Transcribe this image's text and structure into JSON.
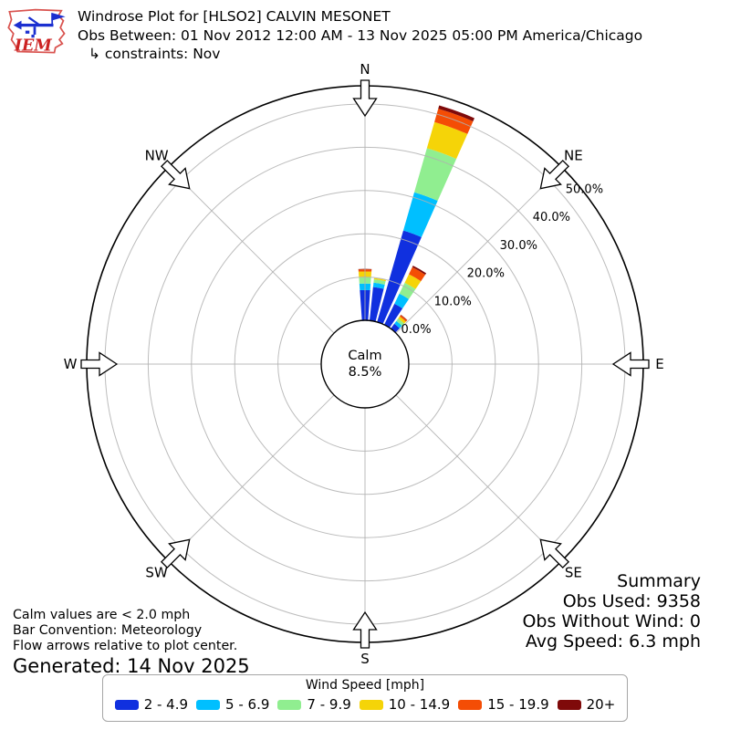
{
  "header": {
    "logo_text": "IEM",
    "title": "Windrose Plot for [HLSO2] CALVIN MESONET",
    "obs_between": "Obs Between: 01 Nov 2012 12:00 AM - 13 Nov 2025 05:00 PM America/Chicago",
    "constraints": "↳ constraints: Nov"
  },
  "chart_data": {
    "type": "windrose",
    "units": "mph",
    "center_label": [
      "Calm",
      "8.5%"
    ],
    "calm_pct": 8.5,
    "radial_ticks_pct": [
      0,
      10,
      20,
      30,
      40,
      50
    ],
    "radial_tick_labels": [
      "0.0%",
      "10.0%",
      "20.0%",
      "30.0%",
      "40.0%",
      "50.0%"
    ],
    "rmax_pct": 54.2,
    "grid_color": "#b0b0b0",
    "petal_width_deg": 8,
    "compass_points": [
      {
        "label": "N",
        "angle": 0
      },
      {
        "label": "NE",
        "angle": 45
      },
      {
        "label": "E",
        "angle": 90
      },
      {
        "label": "SE",
        "angle": 135
      },
      {
        "label": "S",
        "angle": 180
      },
      {
        "label": "SW",
        "angle": 225
      },
      {
        "label": "W",
        "angle": 270
      },
      {
        "label": "NW",
        "angle": 315
      }
    ],
    "speed_bins": [
      {
        "label": "2 - 4.9",
        "color": "#1030df"
      },
      {
        "label": "5 - 6.9",
        "color": "#00bfff"
      },
      {
        "label": "7 - 9.9",
        "color": "#90ee90"
      },
      {
        "label": "10 - 14.9",
        "color": "#f5d408"
      },
      {
        "label": "15 - 19.9",
        "color": "#f44d05"
      },
      {
        "label": "20+",
        "color": "#7f0a0a"
      }
    ],
    "petals": [
      {
        "direction_deg": 0,
        "values": [
          7.0,
          1.5,
          1.5,
          1.3,
          0.5,
          0.1
        ]
      },
      {
        "direction_deg": 10,
        "values": [
          7.8,
          1.0,
          0.8,
          0.3,
          0.0,
          0.0
        ]
      },
      {
        "direction_deg": 20,
        "values": [
          22.0,
          9.2,
          10.6,
          6.3,
          3.2,
          0.8
        ]
      },
      {
        "direction_deg": 30,
        "values": [
          5.4,
          2.6,
          2.8,
          2.2,
          1.8,
          0.4
        ]
      },
      {
        "direction_deg": 40,
        "values": [
          1.4,
          0.8,
          0.7,
          0.6,
          0.4,
          0.1
        ]
      }
    ]
  },
  "summary": {
    "title": "Summary",
    "lines": [
      "Obs Used: 9358",
      "Obs Without Wind: 0",
      "Avg Speed: 6.3 mph"
    ]
  },
  "footnotes": {
    "lines": [
      "Calm values are < 2.0 mph",
      "Bar Convention: Meteorology",
      "Flow arrows relative to plot center."
    ],
    "generated": "Generated: 14 Nov 2025"
  },
  "legend": {
    "title": "Wind Speed [mph]"
  }
}
